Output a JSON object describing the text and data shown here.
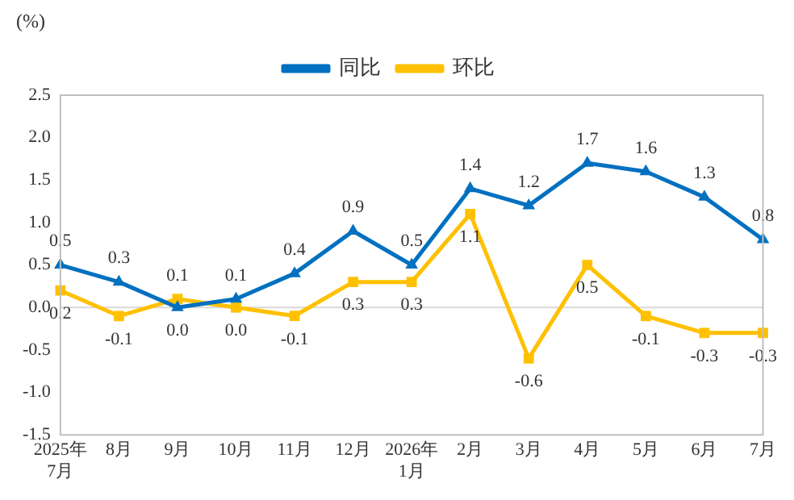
{
  "chart_data": {
    "type": "line",
    "ylabel": "(%)",
    "categories": [
      "2025年\n7月",
      "8月",
      "9月",
      "10月",
      "11月",
      "12月",
      "2026年\n1月",
      "2月",
      "3月",
      "4月",
      "5月",
      "6月",
      "7月"
    ],
    "series": [
      {
        "name": "同比",
        "color": "#0070c0",
        "marker": "triangle",
        "values": [
          0.5,
          0.3,
          0.0,
          0.1,
          0.4,
          0.9,
          0.5,
          1.4,
          1.2,
          1.7,
          1.6,
          1.3,
          0.8
        ],
        "value_labels": [
          "0.5",
          "0.3",
          "0.0",
          "0.1",
          "0.4",
          "0.9",
          "0.5",
          "1.4",
          "1.2",
          "1.7",
          "1.6",
          "1.3",
          "0.8"
        ]
      },
      {
        "name": "环比",
        "color": "#ffc000",
        "marker": "square",
        "values": [
          0.2,
          -0.1,
          0.1,
          0.0,
          -0.1,
          0.3,
          0.3,
          1.1,
          -0.6,
          0.5,
          -0.1,
          -0.3,
          -0.3
        ],
        "value_labels": [
          "0.2",
          "-0.1",
          "0.1",
          "0.0",
          "-0.1",
          "0.3",
          "0.3",
          "1.1",
          "-0.6",
          "0.5",
          "-0.1",
          "-0.3",
          "-0.3"
        ]
      }
    ],
    "ylim": [
      -1.5,
      2.5
    ],
    "yticks": [
      {
        "value": -1.5,
        "label": "-1.5"
      },
      {
        "value": -1,
        "label": "-1.0"
      },
      {
        "value": -0.5,
        "label": "-0.5"
      },
      {
        "value": 0,
        "label": "0.0"
      },
      {
        "value": 0.5,
        "label": "0.5"
      },
      {
        "value": 1,
        "label": "1.0"
      },
      {
        "value": 1.5,
        "label": "1.5"
      },
      {
        "value": 2,
        "label": "2.0"
      },
      {
        "value": 2.5,
        "label": "2.5"
      }
    ],
    "ref_lines": [
      {
        "axis": "y",
        "value": 0,
        "color": "#d9d9d9"
      }
    ],
    "grid": false,
    "legend": "top",
    "line_style": "solid"
  }
}
